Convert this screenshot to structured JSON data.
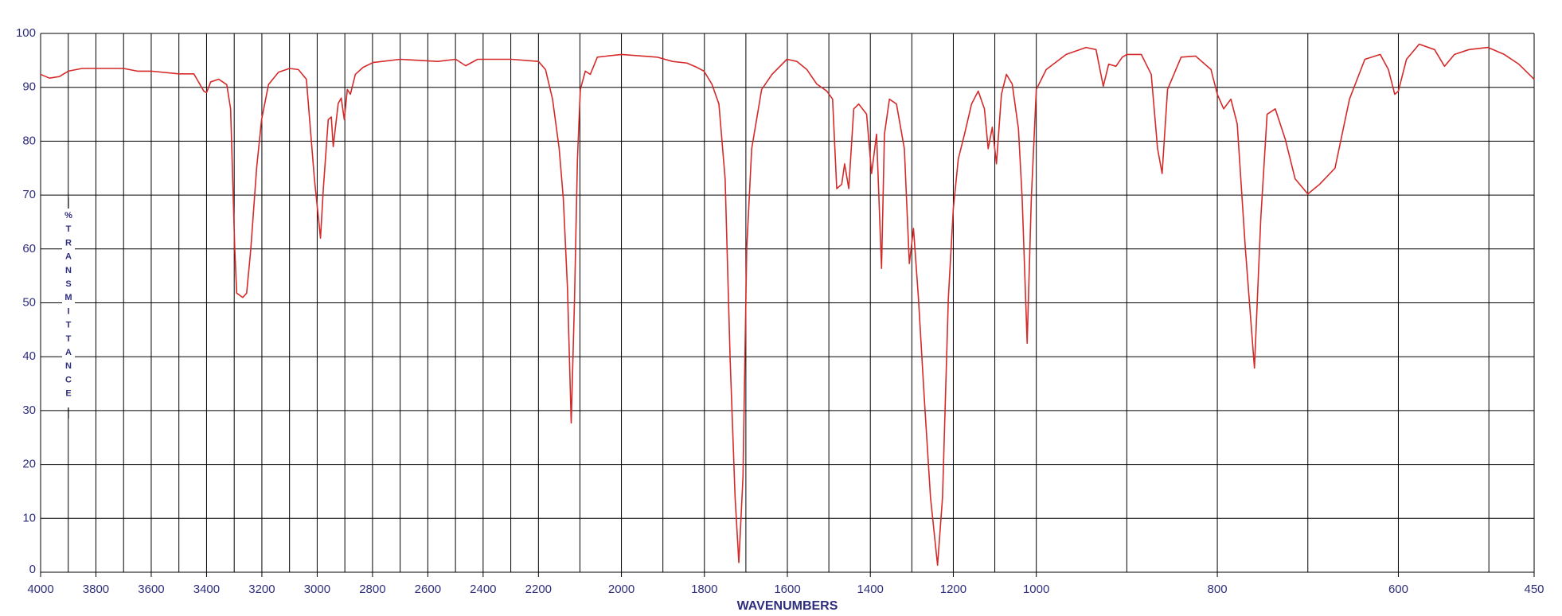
{
  "chart_data": {
    "type": "line",
    "xlabel": "WAVENUMBERS",
    "ylabel": "%TRANSMITTANCE",
    "xlim": [
      4000,
      450
    ],
    "xscale_breaks": [
      2200,
      1000
    ],
    "xticks": [
      4000,
      3800,
      3600,
      3400,
      3200,
      3000,
      2800,
      2600,
      2400,
      2200,
      2000,
      1800,
      1600,
      1400,
      1200,
      1000,
      800,
      600,
      450
    ],
    "xminorticks": [
      3900,
      3700,
      3500,
      3300,
      3100,
      2900,
      2700,
      2500,
      2300,
      2100,
      1900,
      1700,
      1500,
      1300,
      1100,
      900,
      700,
      500
    ],
    "ylim": [
      0,
      100
    ],
    "yticks": [
      0,
      10,
      20,
      30,
      40,
      50,
      60,
      70,
      80,
      90,
      100
    ],
    "grid": true,
    "color": "#d42a2a",
    "x": [
      4000,
      3968,
      3932,
      3900,
      3850,
      3800,
      3750,
      3700,
      3650,
      3600,
      3500,
      3446,
      3410,
      3400,
      3385,
      3356,
      3327,
      3313,
      3298,
      3291,
      3269,
      3255,
      3240,
      3219,
      3201,
      3176,
      3140,
      3100,
      3068,
      3039,
      3021,
      3010,
      2988,
      2978,
      2960,
      2949,
      2942,
      2924,
      2913,
      2902,
      2891,
      2880,
      2862,
      2834,
      2798,
      2700,
      2564,
      2499,
      2463,
      2420,
      2297,
      2200,
      2183,
      2166,
      2150,
      2140,
      2130,
      2121,
      2113,
      2106,
      2099,
      2087,
      2075,
      2058,
      2000,
      1914,
      1877,
      1842,
      1818,
      1801,
      1782,
      1765,
      1750,
      1738,
      1726,
      1717,
      1707,
      1698,
      1686,
      1662,
      1637,
      1601,
      1577,
      1553,
      1529,
      1505,
      1491,
      1481,
      1469,
      1462,
      1452,
      1440,
      1428,
      1409,
      1397,
      1385,
      1373,
      1366,
      1354,
      1337,
      1318,
      1306,
      1296,
      1284,
      1270,
      1255,
      1238,
      1226,
      1212,
      1200,
      1188,
      1173,
      1156,
      1140,
      1125,
      1116,
      1106,
      1096,
      1084,
      1072,
      1058,
      1043,
      1034,
      1022,
      1012,
      1000,
      989,
      967,
      945,
      934,
      926,
      920,
      912,
      905,
      900,
      884,
      873,
      866,
      861,
      855,
      840,
      824,
      807,
      800,
      793,
      785,
      778,
      769,
      759,
      752,
      745,
      736,
      725,
      714,
      700,
      687,
      670,
      654,
      637,
      620,
      611,
      604,
      600,
      591,
      577,
      560,
      549,
      538,
      522,
      501,
      483,
      467,
      450
    ],
    "values": [
      92.4,
      91.7,
      92,
      93,
      93.5,
      93.5,
      93.5,
      93.5,
      93,
      93,
      92.5,
      92.5,
      89.3,
      89,
      91,
      91.5,
      90.5,
      86,
      60,
      51.8,
      51,
      51.8,
      60,
      75,
      84,
      90.5,
      92.8,
      93.5,
      93.3,
      91.5,
      80,
      73,
      62,
      71,
      84,
      84.5,
      79,
      87,
      88,
      84,
      89.6,
      88.7,
      92.4,
      93.7,
      94.6,
      95.2,
      94.8,
      95.2,
      94,
      95.2,
      95.2,
      94.8,
      93.3,
      87.8,
      78.6,
      69.3,
      52.7,
      27.7,
      50.8,
      76.7,
      89.6,
      93,
      92.4,
      95.6,
      96.1,
      95.6,
      94.8,
      94.5,
      93.7,
      93,
      90.6,
      86.9,
      73,
      39.7,
      13.9,
      1.8,
      17.6,
      60,
      78.6,
      89.6,
      92.4,
      95.2,
      94.8,
      93.3,
      90.6,
      89.3,
      87.8,
      71.2,
      72,
      75.8,
      71.2,
      86,
      86.9,
      85,
      74,
      81.3,
      56.4,
      81.3,
      87.8,
      86.9,
      78.6,
      57.3,
      63.8,
      50.8,
      32.3,
      13.9,
      1.3,
      13.9,
      50.8,
      67.5,
      76.7,
      81.3,
      86.9,
      89.3,
      86,
      78.6,
      82.6,
      75.8,
      88.7,
      92.4,
      90.6,
      82.3,
      69.3,
      42.5,
      69.3,
      89.6,
      93.3,
      96.1,
      97.4,
      97,
      90.2,
      94.3,
      93.9,
      95.6,
      96.1,
      96.1,
      92.4,
      78.6,
      74,
      89.6,
      95.6,
      95.8,
      93.3,
      88.7,
      86,
      87.8,
      83.2,
      60,
      37.9,
      65.6,
      85,
      86,
      80.4,
      73,
      70.2,
      72,
      75,
      87.8,
      95.2,
      96.1,
      93.3,
      88.7,
      89.3,
      95.2,
      98,
      97,
      93.9,
      96.1,
      97,
      97.4,
      96.1,
      94.3,
      91.5
    ]
  }
}
